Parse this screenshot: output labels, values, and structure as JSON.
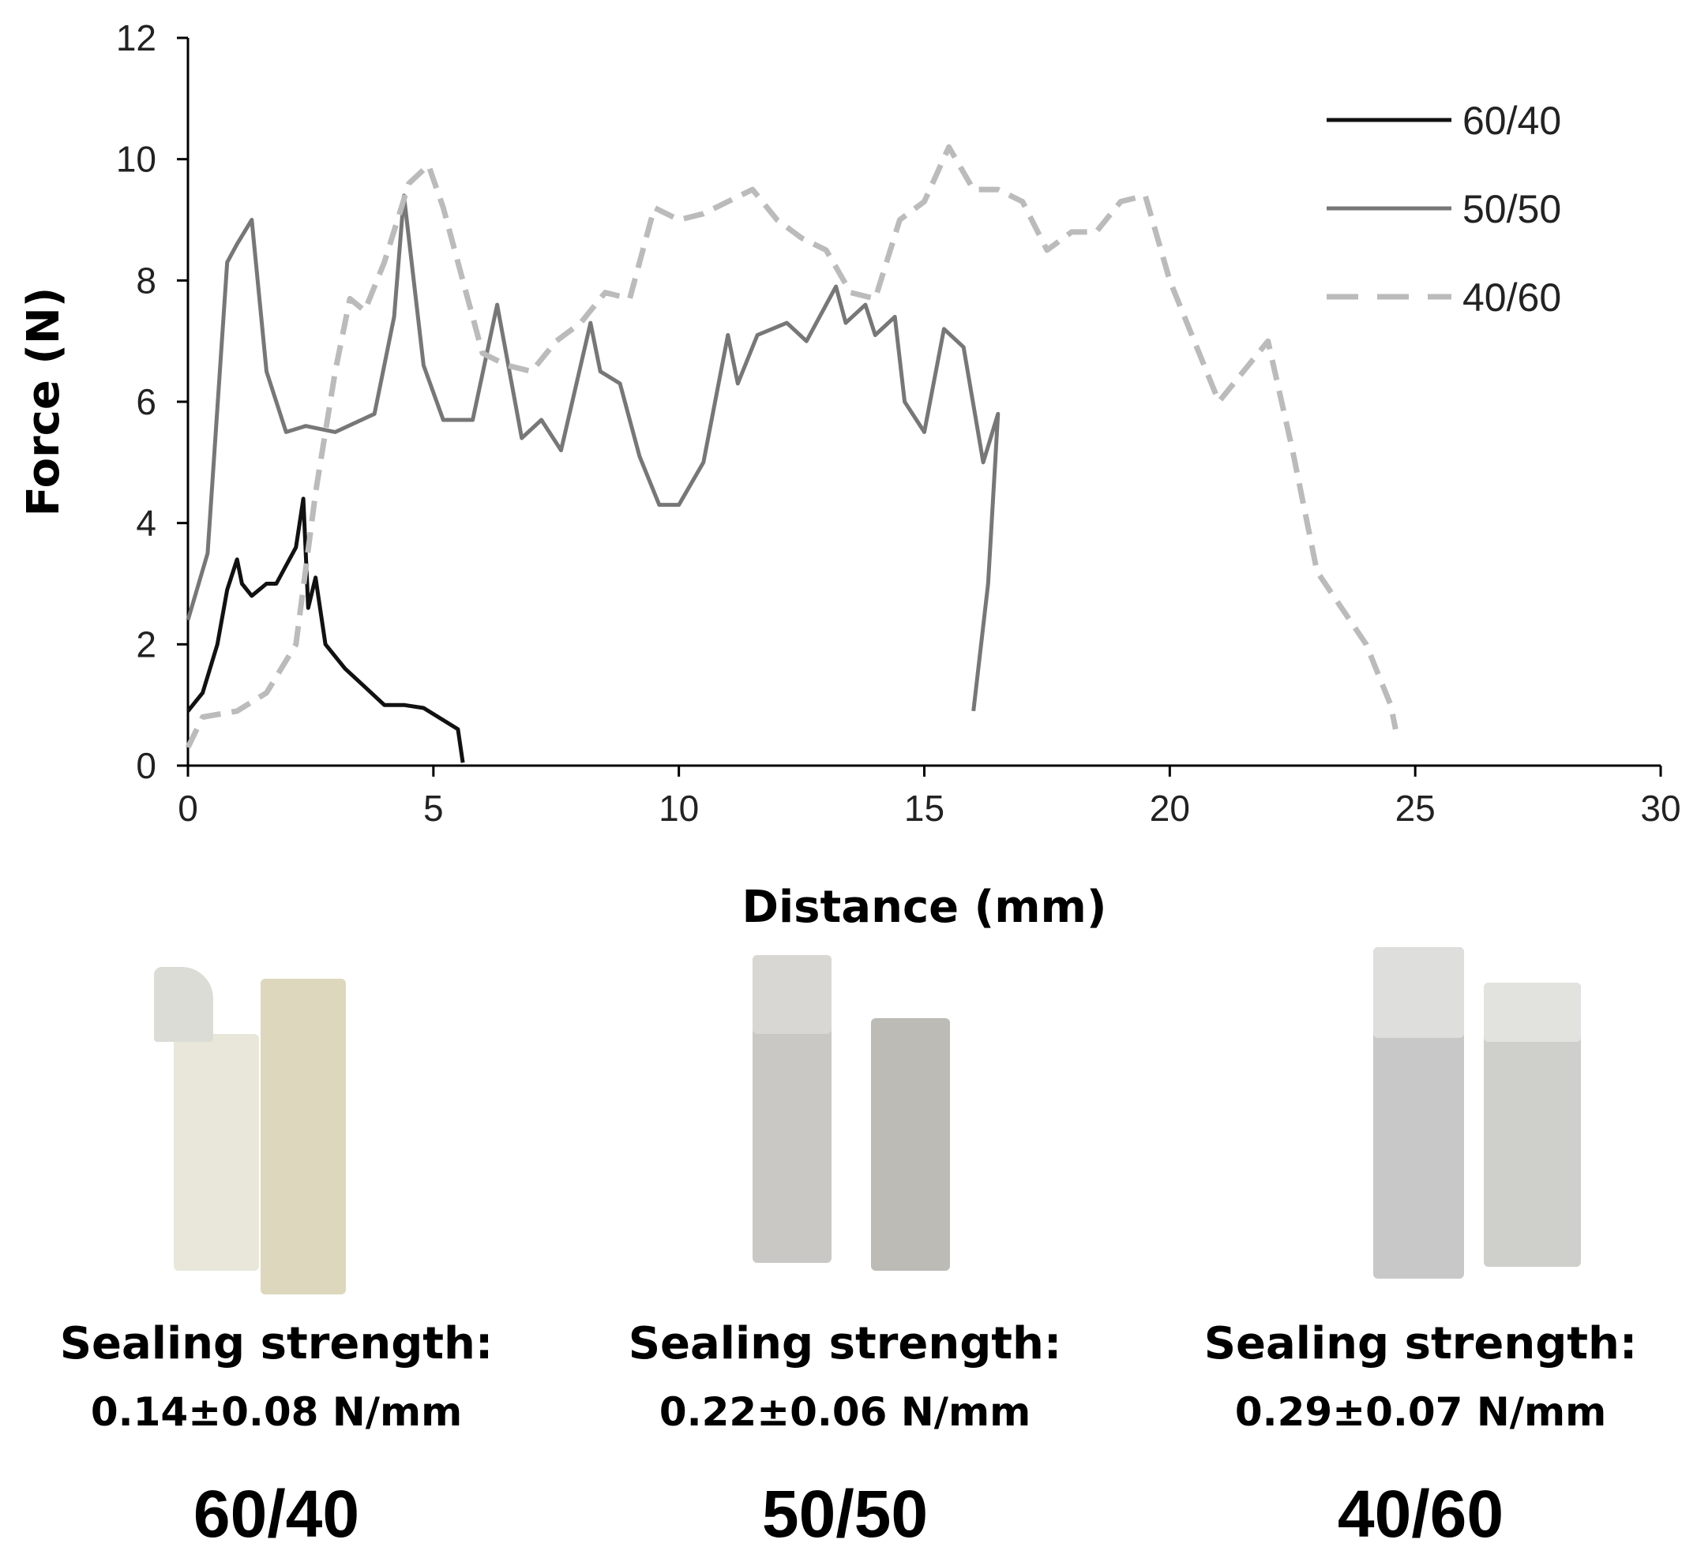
{
  "chart_data": {
    "type": "line",
    "xlabel": "Distance (mm)",
    "ylabel": "Force (N)",
    "xlim": [
      0,
      30
    ],
    "ylim": [
      0,
      12
    ],
    "xticks": [
      0,
      5,
      10,
      15,
      20,
      25,
      30
    ],
    "yticks": [
      0,
      2,
      4,
      6,
      8,
      10,
      12
    ],
    "grid": false,
    "legend": "top-right",
    "series": [
      {
        "name": "60/40",
        "color": "#111111",
        "style": "solid",
        "x": [
          0,
          0.3,
          0.6,
          0.8,
          1.0,
          1.1,
          1.3,
          1.6,
          1.8,
          2.0,
          2.2,
          2.35,
          2.45,
          2.6,
          2.8,
          3.2,
          3.6,
          4.0,
          4.4,
          4.8,
          5.2,
          5.5,
          5.6
        ],
        "y": [
          0.9,
          1.2,
          2.0,
          2.9,
          3.4,
          3.0,
          2.8,
          3.0,
          3.0,
          3.3,
          3.6,
          4.4,
          2.6,
          3.1,
          2.0,
          1.6,
          1.3,
          1.0,
          1.0,
          0.95,
          0.75,
          0.6,
          0.05
        ]
      },
      {
        "name": "50/50",
        "color": "#777777",
        "style": "solid",
        "x": [
          0,
          0.4,
          0.8,
          1.0,
          1.3,
          1.6,
          2.0,
          2.4,
          3.0,
          3.8,
          4.2,
          4.4,
          4.8,
          5.2,
          5.8,
          6.3,
          6.8,
          7.2,
          7.6,
          8.2,
          8.4,
          8.8,
          9.2,
          9.6,
          10.0,
          10.5,
          11.0,
          11.2,
          11.6,
          12.2,
          12.6,
          13.2,
          13.4,
          13.8,
          14.0,
          14.4,
          14.6,
          15.0,
          15.4,
          15.8,
          16.2,
          16.5,
          16.3,
          16.0
        ],
        "y": [
          2.4,
          3.5,
          8.3,
          8.6,
          9.0,
          6.5,
          5.5,
          5.6,
          5.5,
          5.8,
          7.4,
          9.4,
          6.6,
          5.7,
          5.7,
          7.6,
          5.4,
          5.7,
          5.2,
          7.3,
          6.5,
          6.3,
          5.1,
          4.3,
          4.3,
          5.0,
          7.1,
          6.3,
          7.1,
          7.3,
          7.0,
          7.9,
          7.3,
          7.6,
          7.1,
          7.4,
          6.0,
          5.5,
          7.2,
          6.9,
          5.0,
          5.8,
          3.0,
          0.9
        ]
      },
      {
        "name": "40/60",
        "color": "#bbbbbb",
        "style": "dashed",
        "x": [
          0,
          0.3,
          1.0,
          1.6,
          2.2,
          2.6,
          3.0,
          3.3,
          3.6,
          4.0,
          4.5,
          4.9,
          5.2,
          5.6,
          6.0,
          6.5,
          7.0,
          7.5,
          8.0,
          8.5,
          9.0,
          9.5,
          10.0,
          10.5,
          11.0,
          11.5,
          12.0,
          12.5,
          13.0,
          13.5,
          14.0,
          14.5,
          15.0,
          15.5,
          16.0,
          16.5,
          17.0,
          17.5,
          18.0,
          18.5,
          19.0,
          19.5,
          20.0,
          20.5,
          21.0,
          21.5,
          22.0,
          22.5,
          23.0,
          23.5,
          24.0,
          24.5,
          24.6
        ],
        "y": [
          0.3,
          0.8,
          0.9,
          1.2,
          2.0,
          4.5,
          6.5,
          7.7,
          7.5,
          8.3,
          9.6,
          9.9,
          9.2,
          8.0,
          6.8,
          6.6,
          6.5,
          7.0,
          7.3,
          7.8,
          7.7,
          9.2,
          9.0,
          9.1,
          9.3,
          9.5,
          9.0,
          8.7,
          8.5,
          7.8,
          7.7,
          9.0,
          9.3,
          10.2,
          9.5,
          9.5,
          9.3,
          8.5,
          8.8,
          8.8,
          9.3,
          9.4,
          8.0,
          7.0,
          6.0,
          6.5,
          7.0,
          5.2,
          3.2,
          2.6,
          2.0,
          1.0,
          0.6
        ]
      }
    ]
  },
  "samples": [
    {
      "caption_label": "Sealing strength:",
      "caption_value": "0.14±0.08 N/mm",
      "name": "60/40",
      "tint_a": "#e9e8dc",
      "tint_b": "#ddd8bd"
    },
    {
      "caption_label": "Sealing strength:",
      "caption_value": "0.22±0.06 N/mm",
      "name": "50/50",
      "tint_a": "#c9c8c4",
      "tint_b": "#bcbbb6"
    },
    {
      "caption_label": "Sealing strength:",
      "caption_value": "0.29±0.07 N/mm",
      "name": "40/60",
      "tint_a": "#c8c8c8",
      "tint_b": "#cfd0cc"
    }
  ]
}
